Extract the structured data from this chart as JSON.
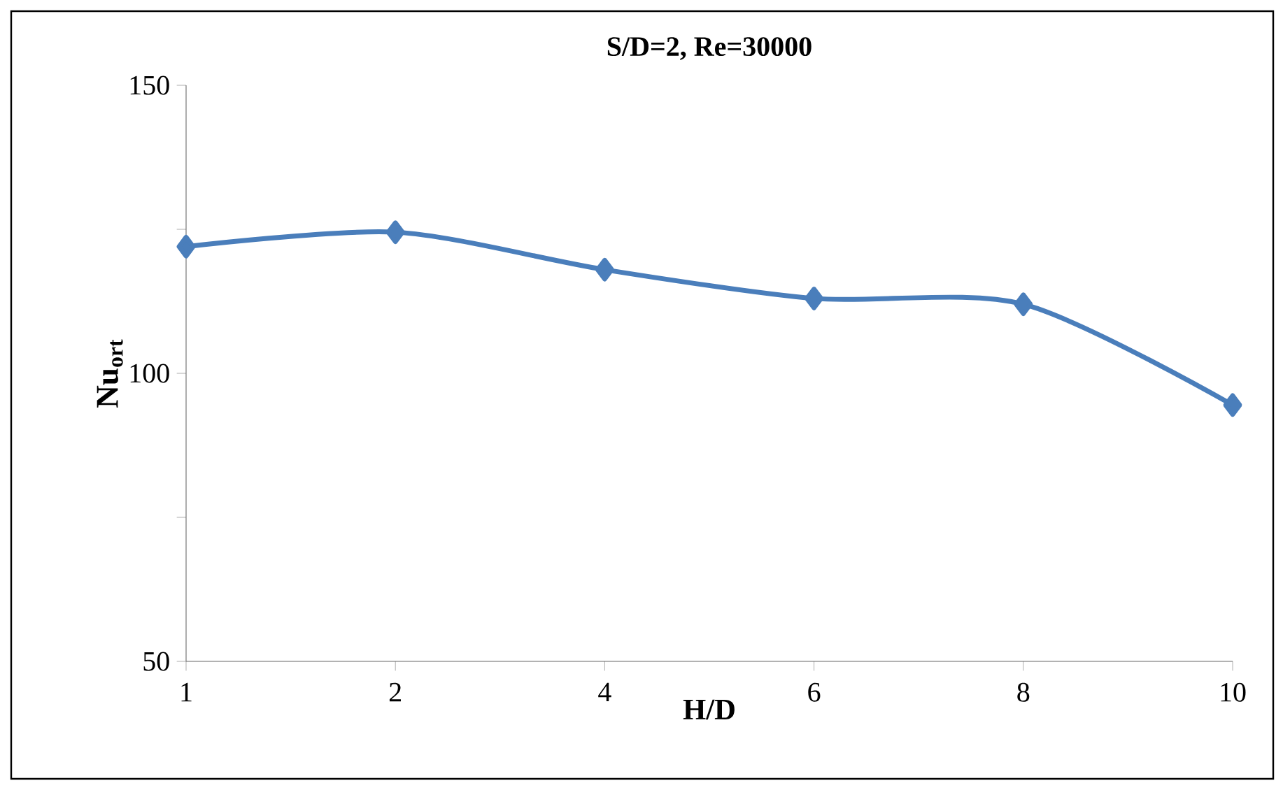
{
  "chart_data": {
    "type": "line",
    "title": "S/D=2, Re=30000",
    "xlabel": "H/D",
    "ylabel": "Nu$_{ort}$",
    "categories": [
      "1",
      "2",
      "4",
      "6",
      "8",
      "10"
    ],
    "series": [
      {
        "color": "#4a7ebb",
        "values": [
          122,
          124.5,
          118,
          113,
          112,
          94.5
        ]
      }
    ],
    "ylim": [
      50,
      150
    ],
    "yticks": [
      50,
      {
        "value": 75,
        "label": null
      },
      100,
      {
        "value": 125,
        "label": null
      },
      150
    ],
    "marker": "diamond",
    "line_style": "solid",
    "grid": false,
    "legend": false
  }
}
